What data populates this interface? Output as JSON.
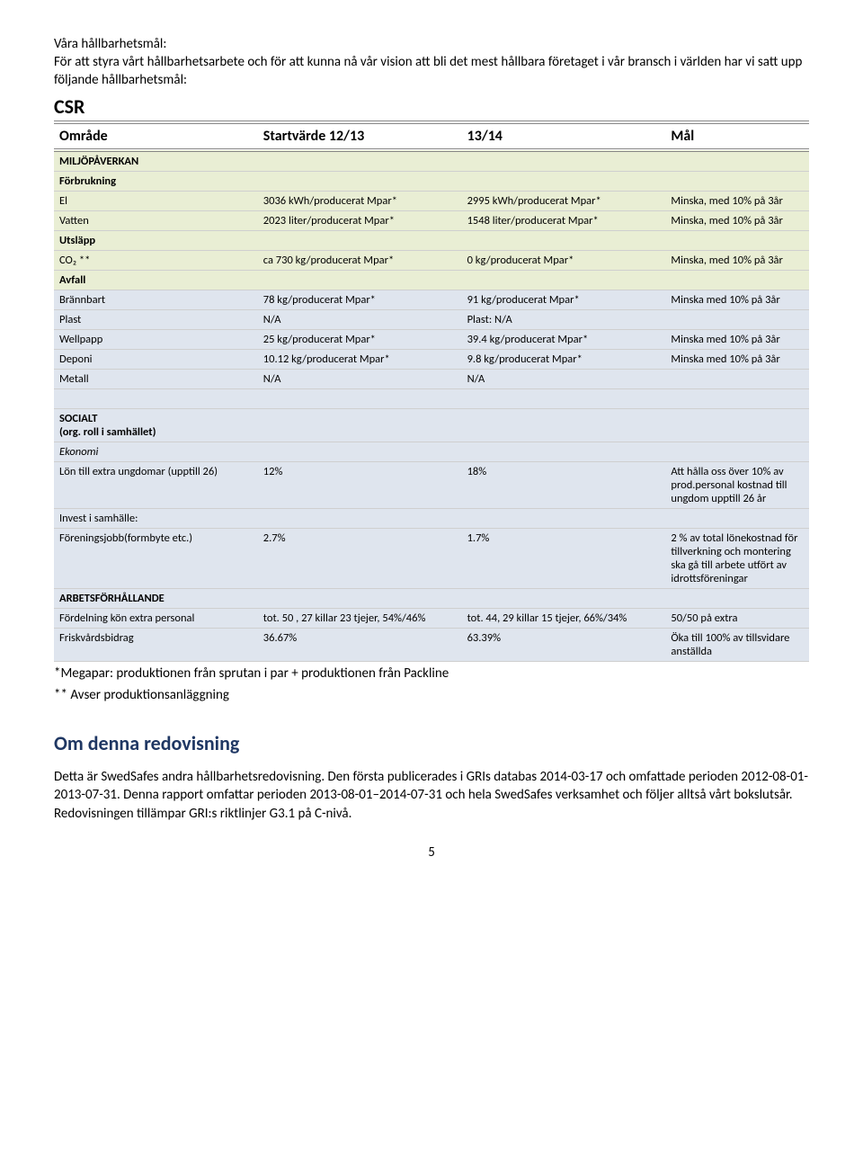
{
  "intro": {
    "heading": "Våra hållbarhetsmål:",
    "text": "För att styra vårt hållbarhetsarbete och för att kunna nå vår vision att bli det mest hållbara företaget i vår bransch i världen har vi satt upp följande hållbarhetsmål:"
  },
  "csr_label": "CSR",
  "table": {
    "headers": [
      "Område",
      "Startvärde 12/13",
      "13/14",
      "Mål"
    ],
    "sections": {
      "miljo": "MILJÖPÅVERKAN",
      "forbrukning": "Förbrukning",
      "utslapp": "Utsläpp",
      "avfall": "Avfall",
      "socialt": "SOCIALT",
      "socialt_sub": "(org. roll i samhället)",
      "ekonomi": "Ekonomi",
      "invest": "Invest i samhälle:",
      "arbets": "ARBETSFÖRHÅLLANDE"
    },
    "rows": {
      "el": [
        "El",
        "3036 kWh/producerat Mpar*",
        "2995 kWh/producerat Mpar*",
        "Minska, med 10% på 3år"
      ],
      "vatten": [
        "Vatten",
        "2023 liter/producerat Mpar*",
        "1548 liter/producerat Mpar*",
        "Minska, med 10% på 3år"
      ],
      "co2": [
        "CO₂ **",
        "ca 730 kg/producerat Mpar*",
        "0 kg/producerat Mpar*",
        "Minska, med 10% på 3år"
      ],
      "brannbart": [
        "Brännbart",
        "78 kg/producerat Mpar*",
        "91 kg/producerat Mpar*",
        "Minska  med 10% på 3år"
      ],
      "plast": [
        "Plast",
        "N/A",
        "Plast: N/A",
        ""
      ],
      "wellpapp": [
        "Wellpapp",
        "25 kg/producerat Mpar*",
        "39.4 kg/producerat Mpar*",
        "Minska  med 10% på 3år"
      ],
      "deponi": [
        "Deponi",
        "10.12 kg/producerat Mpar*",
        "9.8 kg/producerat Mpar*",
        "Minska  med 10% på 3år"
      ],
      "metall": [
        "Metall",
        "N/A",
        "N/A",
        ""
      ],
      "lon": [
        "Lön till extra ungdomar (upptill 26)",
        "12%",
        "18%",
        "Att hålla oss över 10% av prod.personal kostnad till ungdom upptill 26 år"
      ],
      "forening": [
        "Föreningsjobb(formbyte etc.)",
        "2.7%",
        "1.7%",
        "2 % av total lönekostnad för tillverkning och montering ska gå till arbete utfört av idrottsföreningar"
      ],
      "fordelning": [
        "Fördelning kön extra personal",
        "tot. 50 , 27 killar 23 tjejer, 54%/46%",
        "tot. 44, 29 killar 15 tjejer, 66%/34%",
        "50/50 på extra"
      ],
      "frisk": [
        "Friskvårdsbidrag",
        "36.67%",
        "63.39%",
        "Öka till 100% av tillsvidare anställda"
      ]
    }
  },
  "footnotes": {
    "a": "*Megapar: produktionen från sprutan i par + produktionen från Packline",
    "b": "** Avser produktionsanläggning"
  },
  "about": {
    "heading": "Om denna redovisning",
    "text": "Detta är SwedSafes andra hållbarhetsredovisning. Den första publicerades i GRIs databas 2014-03-17 och omfattade perioden 2012-08-01-2013-07-31. Denna rapport omfattar perioden 2013-08-01–2014-07-31 och hela SwedSafes verksamhet och följer alltså vårt bokslutsår.  Redovisningen tillämpar GRI:s riktlinjer G3.1 på C-nivå."
  },
  "page_number": "5",
  "colors": {
    "green": "#e9eed4",
    "blue": "#dfe5ee",
    "heading_blue": "#1f3763",
    "border": "#cfcfcf"
  }
}
